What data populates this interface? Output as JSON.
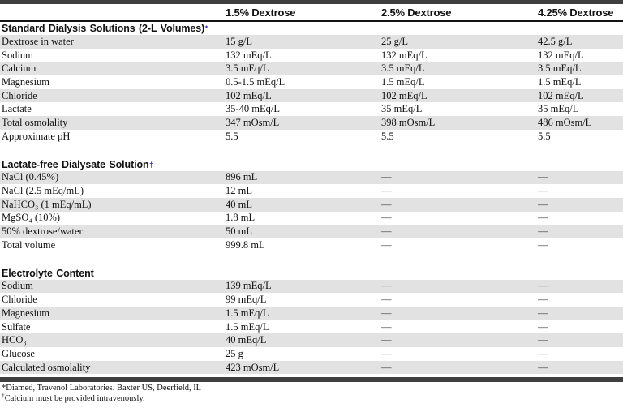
{
  "table": {
    "column_headers": [
      "",
      "1.5% Dextrose",
      "2.5% Dextrose",
      "4.25% Dextrose"
    ],
    "sections": [
      {
        "title": "Standard Dialysis Solutions (2-L Volumes)",
        "marker": "*",
        "rows": [
          {
            "label": "Dextrose in water",
            "values": [
              "15 g/L",
              "25 g/L",
              "42.5 g/L"
            ]
          },
          {
            "label": "Sodium",
            "values": [
              "132 mEq/L",
              "132 mEq/L",
              "132 mEq/L"
            ]
          },
          {
            "label": "Calcium",
            "values": [
              "3.5 mEq/L",
              "3.5 mEq/L",
              "3.5 mEq/L"
            ]
          },
          {
            "label": "Magnesium",
            "values": [
              "0.5-1.5 mEq/L",
              "1.5 mEq/L",
              "1.5 mEq/L"
            ]
          },
          {
            "label": "Chloride",
            "values": [
              "102 mEq/L",
              "102 mEq/L",
              "102 mEq/L"
            ]
          },
          {
            "label": "Lactate",
            "values": [
              "35-40 mEq/L",
              "35 mEq/L",
              "35 mEq/L"
            ]
          },
          {
            "label": "Total osmolality",
            "values": [
              "347 mOsm/L",
              "398 mOsm/L",
              "486 mOsm/L"
            ]
          },
          {
            "label": "Approximate pH",
            "values": [
              "5.5",
              "5.5",
              "5.5"
            ]
          }
        ]
      },
      {
        "title": "Lactate-free Dialysate Solution",
        "marker": "†",
        "rows": [
          {
            "label": "NaCl (0.45%)",
            "values": [
              "896 mL",
              "—",
              "—"
            ]
          },
          {
            "label": "NaCl (2.5 mEq/mL)",
            "values": [
              "12 mL",
              "—",
              "—"
            ]
          },
          {
            "label": "NaHCO₃ (1 mEq/mL)",
            "values": [
              "40 mL",
              "—",
              "—"
            ]
          },
          {
            "label": "MgSO₄ (10%)",
            "values": [
              "1.8 mL",
              "—",
              "—"
            ]
          },
          {
            "label": "50% dextrose/water:",
            "values": [
              "50 mL",
              "—",
              "—"
            ]
          },
          {
            "label": "Total volume",
            "values": [
              "999.8 mL",
              "—",
              "—"
            ]
          }
        ]
      },
      {
        "title": "Electrolyte Content",
        "marker": "",
        "rows": [
          {
            "label": "Sodium",
            "values": [
              "139 mEq/L",
              "—",
              "—"
            ]
          },
          {
            "label": "Chloride",
            "values": [
              "99 mEq/L",
              "—",
              "—"
            ]
          },
          {
            "label": "Magnesium",
            "values": [
              "1.5 mEq/L",
              "—",
              "—"
            ]
          },
          {
            "label": "Sulfate",
            "values": [
              "1.5 mEq/L",
              "—",
              "—"
            ]
          },
          {
            "label": "HCO₃",
            "values": [
              "40 mEq/L",
              "—",
              "—"
            ]
          },
          {
            "label": "Glucose",
            "values": [
              "25 g",
              "—",
              "—"
            ]
          },
          {
            "label": "Calculated osmolality",
            "values": [
              "423 mOsm/L",
              "—",
              "—"
            ]
          }
        ]
      }
    ],
    "footnotes": [
      {
        "marker": "*",
        "superscript": false,
        "text": "Diamed, Travenol Laboratories. Baxter US, Deerfield, IL"
      },
      {
        "marker": "†",
        "superscript": true,
        "text": "Calcium must be provided intravenously."
      }
    ],
    "colors": {
      "bar": "#3f3f3f",
      "stripe": "#e2e2e2",
      "marker_accent": "#2a2ab8"
    }
  }
}
